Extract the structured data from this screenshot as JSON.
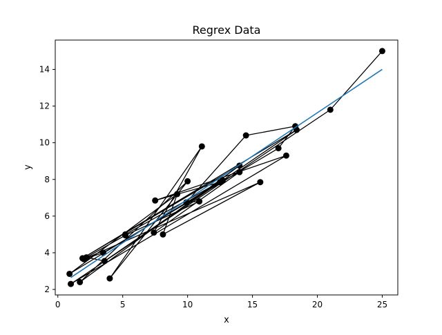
{
  "chart_data": {
    "type": "scatter",
    "title": "Regrex Data",
    "xlabel": "x",
    "ylabel": "y",
    "xlim": [
      -0.2,
      26.2
    ],
    "ylim": [
      1.7,
      15.6
    ],
    "xticks": [
      0,
      5,
      10,
      15,
      20,
      25
    ],
    "yticks": [
      2,
      4,
      6,
      8,
      10,
      12,
      14
    ],
    "grid": false,
    "series": [
      {
        "kind": "markers-connected",
        "color": "#000000",
        "x": [
          25.0,
          21.0,
          1.0,
          17.6,
          7.5,
          12.5,
          14.0,
          7.4,
          11.1,
          4.0,
          10.0,
          1.7,
          14.0,
          1.9,
          18.4,
          3.6,
          2.2,
          5.2,
          10.9,
          9.9,
          14.5,
          18.3,
          17.0,
          3.5,
          2.0,
          15.6,
          8.1,
          9.2,
          0.9,
          12.7,
          5.2
        ],
        "y": [
          15.0,
          11.8,
          2.3,
          9.3,
          6.85,
          7.85,
          8.4,
          5.1,
          9.8,
          2.6,
          7.9,
          2.4,
          8.75,
          3.7,
          10.7,
          3.55,
          3.75,
          4.95,
          6.8,
          6.75,
          10.4,
          10.9,
          9.7,
          4.0,
          3.65,
          7.85,
          5.0,
          7.2,
          2.85,
          7.95,
          5.0
        ]
      },
      {
        "kind": "fit-line",
        "color": "#1f77b4",
        "x": [
          1.0,
          25.0
        ],
        "y": [
          2.65,
          14.0
        ]
      }
    ]
  }
}
